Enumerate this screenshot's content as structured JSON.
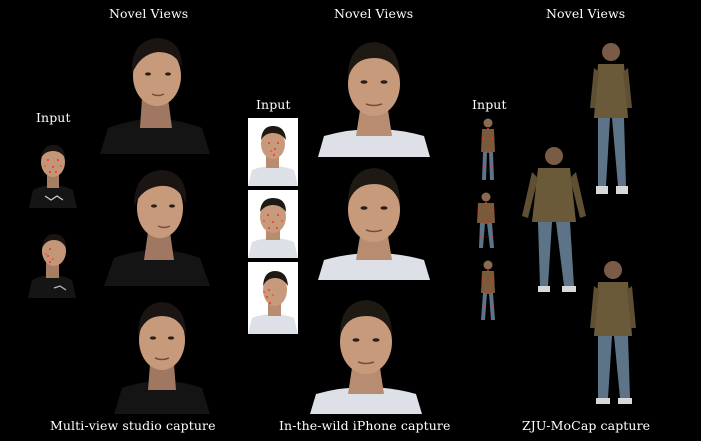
{
  "figure": {
    "background": "#000000",
    "headings": {
      "studio_novel": "Novel Views",
      "iphone_novel": "Novel Views",
      "zju_novel": "Novel Views",
      "studio_input": "Input",
      "iphone_input": "Input",
      "zju_input": "Input"
    },
    "captions": {
      "studio": "Multi-view studio capture",
      "iphone": "In-the-wild iPhone capture",
      "zju": "ZJU-MoCap capture"
    },
    "colors": {
      "landmark": "#ff2a2a",
      "skin": "#c89a7c",
      "hair": "#1a1512",
      "shirt_dark": "#141414",
      "shirt_light": "#dde0e6",
      "jacket": "#6b5a3a",
      "jeans": "#5d7488"
    }
  }
}
